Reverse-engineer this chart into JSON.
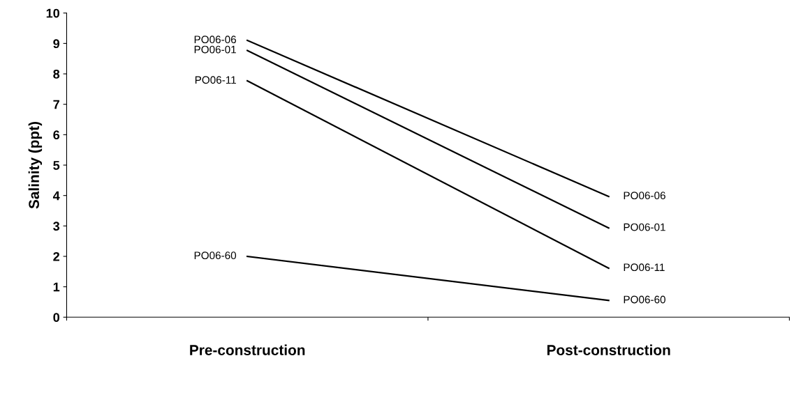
{
  "chart_data": {
    "type": "line",
    "ylabel": "Salinity (ppt)",
    "categories": [
      "Pre-construction",
      "Post-construction"
    ],
    "ylim": [
      0,
      10
    ],
    "yticks": [
      0,
      1,
      2,
      3,
      4,
      5,
      6,
      7,
      8,
      9,
      10
    ],
    "series": [
      {
        "name": "PO06-06",
        "color": "#000000",
        "values": [
          9.1,
          3.97
        ]
      },
      {
        "name": "PO06-01",
        "color": "#000000",
        "values": [
          8.77,
          2.93
        ]
      },
      {
        "name": "PO06-11",
        "color": "#000000",
        "values": [
          7.77,
          1.61
        ]
      },
      {
        "name": "PO06-60",
        "color": "#000000",
        "values": [
          2.0,
          0.55
        ]
      }
    ],
    "grid": false,
    "legend": false,
    "marker": "none",
    "line_style": "solid"
  }
}
